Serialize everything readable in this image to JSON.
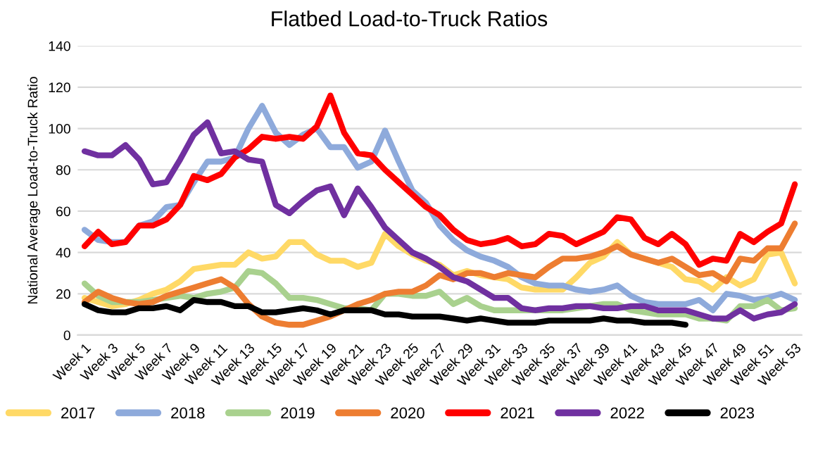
{
  "chart_data": {
    "type": "line",
    "title": "Flatbed Load-to-Truck Ratios",
    "ylabel": "National Average Load-to-Truck Ratio",
    "categories": [
      "Week 1",
      null,
      "Week 3",
      null,
      "Week 5",
      null,
      "Week 7",
      null,
      "Week 9",
      null,
      "Week 11",
      null,
      "Week 13",
      null,
      "Week 15",
      null,
      "Week 17",
      null,
      "Week 19",
      null,
      "Week 21",
      null,
      "Week 23",
      null,
      "Week 25",
      null,
      "Week 27",
      null,
      "Week 29",
      null,
      "Week 31",
      null,
      "Week 33",
      null,
      "Week 35",
      null,
      "Week 37",
      null,
      "Week 39",
      null,
      "Week 41",
      null,
      "Week 43",
      null,
      "Week 45",
      null,
      "Week 47",
      null,
      "Week 49",
      null,
      "Week 51",
      null,
      "Week 53"
    ],
    "ylim": [
      0,
      140
    ],
    "yticks": [
      0,
      20,
      40,
      60,
      80,
      100,
      120,
      140
    ],
    "grid": "y",
    "legend": "bottom",
    "marker": "none",
    "line_style": "solid",
    "series": [
      {
        "name": "2017",
        "color": "#ffd966",
        "values": [
          18,
          16,
          14,
          15,
          17,
          20,
          22,
          26,
          32,
          33,
          34,
          34,
          40,
          37,
          38,
          45,
          45,
          39,
          36,
          36,
          33,
          35,
          49,
          43,
          39,
          36,
          34,
          29,
          31,
          29,
          28,
          27,
          23,
          22,
          22,
          22,
          28,
          35,
          38,
          45,
          39,
          37,
          35,
          33,
          27,
          26,
          22,
          28,
          24,
          27,
          39,
          40,
          25
        ]
      },
      {
        "name": "2018",
        "color": "#8eaadb",
        "values": [
          51,
          46,
          45,
          45,
          53,
          55,
          62,
          63,
          74,
          84,
          84,
          86,
          100,
          111,
          98,
          92,
          97,
          100,
          91,
          91,
          81,
          84,
          99,
          84,
          70,
          64,
          53,
          46,
          41,
          38,
          36,
          33,
          28,
          25,
          24,
          24,
          22,
          21,
          22,
          24,
          19,
          16,
          15,
          15,
          15,
          17,
          12,
          20,
          19,
          17,
          18,
          20,
          17
        ]
      },
      {
        "name": "2019",
        "color": "#a9d18e",
        "values": [
          25,
          19,
          16,
          16,
          16,
          17,
          18,
          19,
          18,
          20,
          21,
          23,
          31,
          30,
          25,
          18,
          18,
          17,
          15,
          13,
          13,
          12,
          20,
          20,
          19,
          19,
          21,
          15,
          18,
          14,
          12,
          12,
          12,
          12,
          12,
          12,
          13,
          14,
          15,
          15,
          12,
          11,
          10,
          10,
          10,
          8,
          8,
          7,
          14,
          14,
          17,
          12,
          13
        ]
      },
      {
        "name": "2020",
        "color": "#ed7d31",
        "values": [
          16,
          21,
          18,
          16,
          15,
          16,
          19,
          21,
          23,
          25,
          27,
          23,
          15,
          9,
          6,
          5,
          5,
          7,
          9,
          12,
          15,
          17,
          20,
          21,
          21,
          24,
          29,
          27,
          30,
          30,
          28,
          30,
          29,
          28,
          33,
          37,
          37,
          38,
          40,
          43,
          39,
          37,
          35,
          37,
          33,
          29,
          30,
          26,
          37,
          36,
          42,
          42,
          54
        ]
      },
      {
        "name": "2021",
        "color": "#ff0000",
        "values": [
          43,
          50,
          44,
          45,
          53,
          53,
          56,
          63,
          77,
          75,
          78,
          86,
          90,
          96,
          95,
          96,
          95,
          101,
          116,
          98,
          88,
          87,
          80,
          74,
          68,
          62,
          58,
          51,
          46,
          44,
          45,
          47,
          43,
          44,
          49,
          48,
          44,
          47,
          50,
          57,
          56,
          47,
          44,
          49,
          44,
          34,
          37,
          36,
          49,
          45,
          50,
          54,
          73
        ]
      },
      {
        "name": "2022",
        "color": "#7030a0",
        "values": [
          89,
          87,
          87,
          92,
          85,
          73,
          74,
          85,
          97,
          103,
          88,
          89,
          85,
          84,
          63,
          59,
          65,
          70,
          72,
          58,
          71,
          62,
          52,
          46,
          40,
          37,
          33,
          28,
          26,
          22,
          18,
          18,
          13,
          12,
          13,
          13,
          14,
          14,
          13,
          13,
          14,
          14,
          12,
          12,
          12,
          10,
          8,
          8,
          12,
          8,
          10,
          11,
          15
        ]
      },
      {
        "name": "2023",
        "color": "#000000",
        "values": [
          15,
          12,
          11,
          11,
          13,
          13,
          14,
          12,
          17,
          16,
          16,
          14,
          14,
          11,
          11,
          12,
          13,
          12,
          10,
          12,
          12,
          12,
          10,
          10,
          9,
          9,
          9,
          8,
          7,
          8,
          7,
          6,
          6,
          6,
          7,
          7,
          7,
          7,
          8,
          7,
          7,
          6,
          6,
          6,
          5,
          null,
          null,
          null,
          null,
          null,
          null,
          null,
          null
        ]
      }
    ]
  }
}
